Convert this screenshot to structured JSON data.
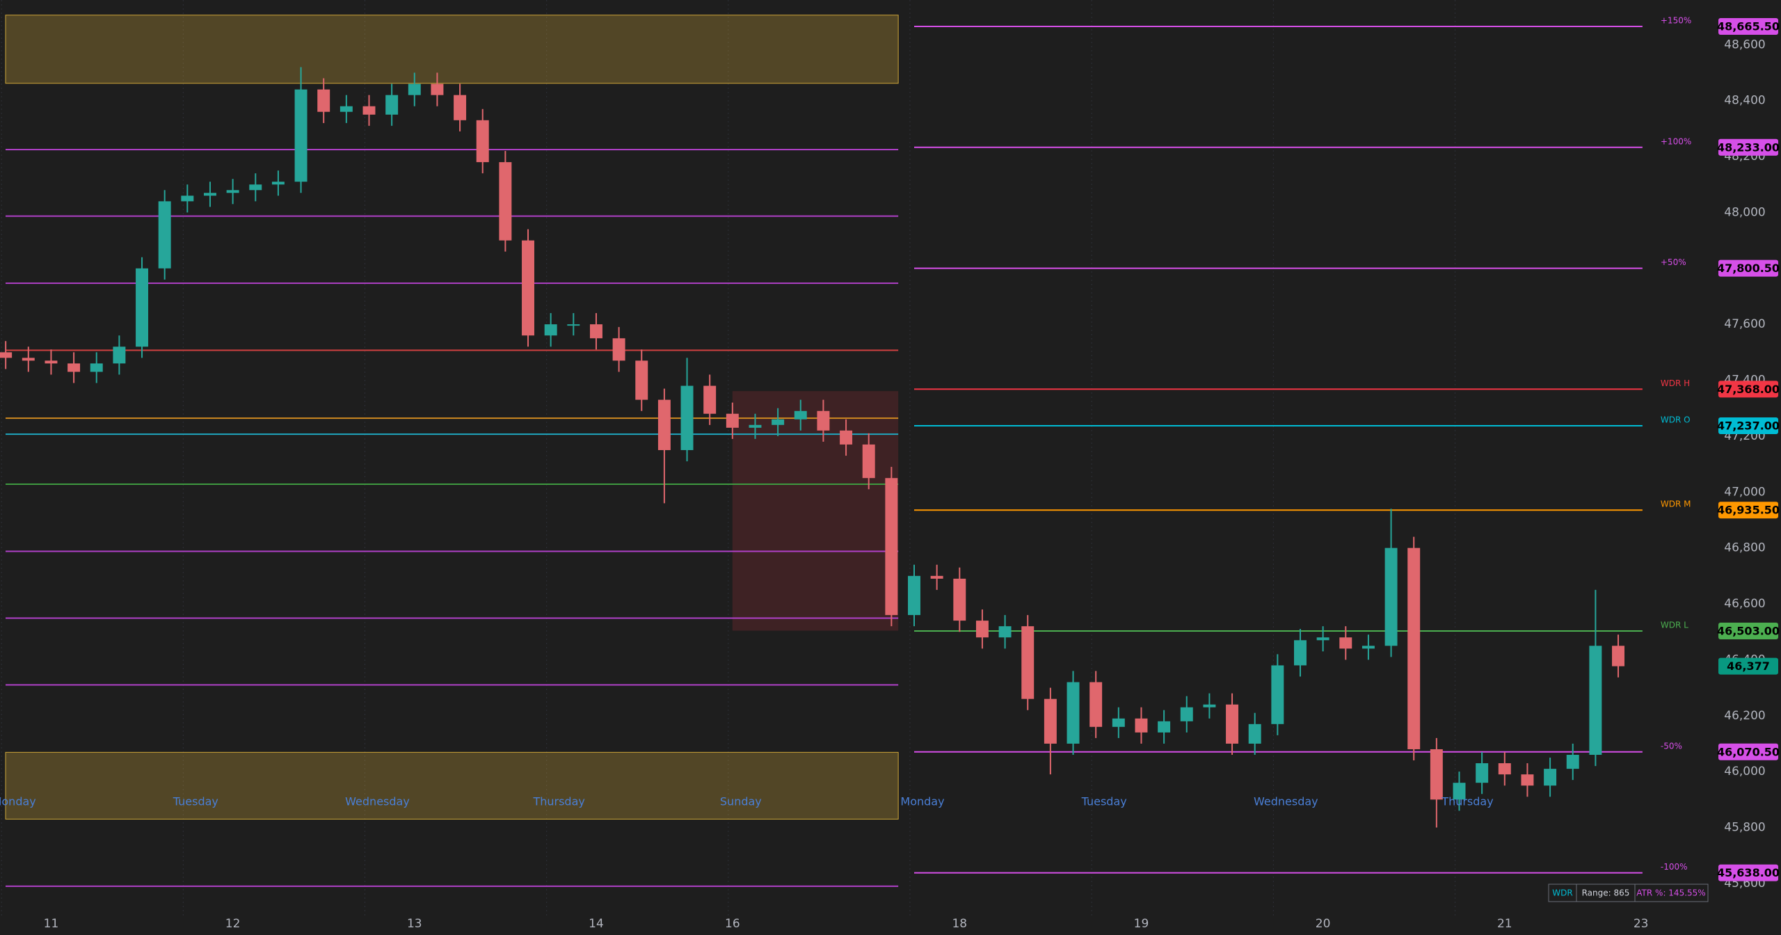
{
  "chart_data": {
    "type": "candlestick",
    "open": [
      47500,
      47480,
      47470,
      47460,
      47430,
      47460,
      47520,
      47800,
      48040,
      48060,
      48070,
      48080,
      48100,
      48110,
      48440,
      48360,
      48380,
      48350,
      48420,
      48460,
      48420,
      48330,
      48180,
      47900,
      47560,
      47600,
      47600,
      47550,
      47470,
      47330,
      47150,
      47380,
      47280,
      47230,
      47240,
      47260,
      47290,
      47220,
      47170,
      47050,
      46560,
      46700,
      46690,
      46540,
      46480,
      46520,
      46260,
      46100,
      46320,
      46160,
      46190,
      46140,
      46180,
      46230,
      46240,
      46100,
      46170,
      46380,
      46470,
      46480,
      46440,
      46450,
      46800,
      46080,
      45900,
      45960,
      46030,
      45990,
      45950,
      46010,
      46060,
      46450
    ],
    "high": [
      47540,
      47520,
      47510,
      47500,
      47500,
      47560,
      47840,
      48080,
      48100,
      48110,
      48120,
      48140,
      48150,
      48520,
      48480,
      48420,
      48420,
      48460,
      48500,
      48500,
      48460,
      48370,
      48220,
      47940,
      47640,
      47640,
      47640,
      47590,
      47510,
      47370,
      47480,
      47420,
      47320,
      47280,
      47300,
      47330,
      47330,
      47260,
      47210,
      47090,
      46740,
      46740,
      46730,
      46580,
      46560,
      46560,
      46300,
      46360,
      46360,
      46230,
      46230,
      46220,
      46270,
      46280,
      46280,
      46210,
      46420,
      46510,
      46520,
      46520,
      46490,
      46940,
      46840,
      46120,
      46000,
      46070,
      46070,
      46030,
      46050,
      46100,
      46650,
      46490
    ],
    "low": [
      47440,
      47430,
      47420,
      47390,
      47390,
      47420,
      47480,
      47760,
      48000,
      48020,
      48030,
      48040,
      48060,
      48070,
      48320,
      48320,
      48310,
      48310,
      48380,
      48380,
      48290,
      48140,
      47860,
      47520,
      47520,
      47560,
      47510,
      47430,
      47290,
      46960,
      47110,
      47240,
      47190,
      47190,
      47200,
      47220,
      47180,
      47130,
      47010,
      46520,
      46520,
      46650,
      46500,
      46440,
      46440,
      46220,
      45990,
      46060,
      46120,
      46120,
      46100,
      46100,
      46140,
      46190,
      46060,
      46060,
      46130,
      46340,
      46430,
      46400,
      46400,
      46410,
      46040,
      45800,
      45860,
      45920,
      45950,
      45910,
      45910,
      45970,
      46020,
      46337
    ],
    "close": [
      47480,
      47470,
      47460,
      47430,
      47460,
      47520,
      47800,
      48040,
      48060,
      48070,
      48080,
      48100,
      48110,
      48440,
      48360,
      48380,
      48350,
      48420,
      48460,
      48420,
      48330,
      48180,
      47900,
      47560,
      47600,
      47600,
      47550,
      47470,
      47330,
      47150,
      47380,
      47280,
      47230,
      47240,
      47260,
      47290,
      47220,
      47170,
      47050,
      46560,
      46700,
      46690,
      46540,
      46480,
      46520,
      46260,
      46100,
      46320,
      46160,
      46190,
      46140,
      46180,
      46230,
      46240,
      46100,
      46170,
      46380,
      46470,
      46480,
      46440,
      46450,
      46800,
      46080,
      45900,
      45960,
      46030,
      45990,
      45950,
      46010,
      46060,
      46450,
      46377
    ],
    "up_color": "#26a69a",
    "down_color": "#e0676d",
    "xlim": [
      -0.25,
      72.5
    ],
    "xticks": [
      {
        "value": 2,
        "label": "11"
      },
      {
        "value": 10,
        "label": "12"
      },
      {
        "value": 18,
        "label": "13"
      },
      {
        "value": 26,
        "label": "14"
      },
      {
        "value": 32,
        "label": "16"
      },
      {
        "value": 42,
        "label": "18"
      },
      {
        "value": 50,
        "label": "19"
      },
      {
        "value": 58,
        "label": "20"
      },
      {
        "value": 66,
        "label": "21"
      },
      {
        "value": 72,
        "label": "23"
      }
    ],
    "day_ticks": [
      {
        "value": 0,
        "label": "Monday"
      },
      {
        "value": 8,
        "label": "Tuesday"
      },
      {
        "value": 16,
        "label": "Wednesday"
      },
      {
        "value": 24,
        "label": "Thursday"
      },
      {
        "value": 32,
        "label": "Sunday"
      },
      {
        "value": 40,
        "label": "Monday"
      },
      {
        "value": 48,
        "label": "Tuesday"
      },
      {
        "value": 56,
        "label": "Wednesday"
      },
      {
        "value": 64,
        "label": "Thursday"
      }
    ],
    "ylim": [
      45530,
      48760
    ],
    "yticks": [
      {
        "value": 48600,
        "label": "48,600"
      },
      {
        "value": 48400,
        "label": "48,400"
      },
      {
        "value": 48200,
        "label": "48,200"
      },
      {
        "value": 48000,
        "label": "48,000"
      },
      {
        "value": 47800,
        "label": "47,800"
      },
      {
        "value": 47600,
        "label": "47,600"
      },
      {
        "value": 47400,
        "label": "47,400"
      },
      {
        "value": 47200,
        "label": "47,200"
      },
      {
        "value": 47000,
        "label": "47,000"
      },
      {
        "value": 46800,
        "label": "46,800"
      },
      {
        "value": 46600,
        "label": "46,600"
      },
      {
        "value": 46400,
        "label": "46,400"
      },
      {
        "value": 46200,
        "label": "46,200"
      },
      {
        "value": 46000,
        "label": "46,000"
      },
      {
        "value": 45800,
        "label": "45,800"
      },
      {
        "value": 45600,
        "label": "45,600"
      }
    ],
    "levels": [
      {
        "name": "+150%",
        "value": 48665.5,
        "value_label": "48,665.50",
        "color": "#d64fe8"
      },
      {
        "name": "+100%",
        "value": 48233,
        "value_label": "48,233.00",
        "color": "#d64fe8"
      },
      {
        "name": "+50%",
        "value": 47800.5,
        "value_label": "47,800.50",
        "color": "#d64fe8"
      },
      {
        "name": "WDR H",
        "value": 47368,
        "value_label": "47,368.00",
        "color": "#f23645"
      },
      {
        "name": "WDR O",
        "value": 47237,
        "value_label": "47,237.00",
        "color": "#00bcd4"
      },
      {
        "name": "WDR M",
        "value": 46935.5,
        "value_label": "46,935.50",
        "color": "#ff9800"
      },
      {
        "name": "WDR L",
        "value": 46503,
        "value_label": "46,503.00",
        "color": "#4caf50"
      },
      {
        "name": "-50%",
        "value": 46070.5,
        "value_label": "46,070.50",
        "color": "#d64fe8"
      },
      {
        "name": "-100%",
        "value": 45638,
        "value_label": "45,638.00",
        "color": "#d64fe8"
      }
    ],
    "prior_levels": [
      {
        "value": 48225,
        "color": "#b040c8"
      },
      {
        "value": 47987,
        "color": "#b040c8"
      },
      {
        "value": 47747,
        "color": "#b040c8"
      },
      {
        "value": 47507,
        "color": "#d04040"
      },
      {
        "value": 47264,
        "color": "#d08a20"
      },
      {
        "value": 47207,
        "color": "#1fa8c0"
      },
      {
        "value": 47028,
        "color": "#3e9a40"
      },
      {
        "value": 46788,
        "color": "#b040c8"
      },
      {
        "value": 46549,
        "color": "#b040c8"
      },
      {
        "value": 46310,
        "color": "#b040c8"
      },
      {
        "value": 45590,
        "color": "#b040c8"
      }
    ],
    "zones": [
      {
        "from": 48462,
        "to": 48706,
        "color": "#f0c040"
      },
      {
        "from": 45830,
        "to": 46069,
        "color": "#f0c040"
      }
    ],
    "range_box": {
      "from": 46504,
      "to": 47361,
      "color": "#c0303a"
    },
    "last": {
      "value": 46377,
      "label": "46,377",
      "color": "#089981"
    },
    "info": {
      "name": "WDR",
      "range": "Range: 865",
      "atr": "ATR %: 145.55%"
    }
  }
}
